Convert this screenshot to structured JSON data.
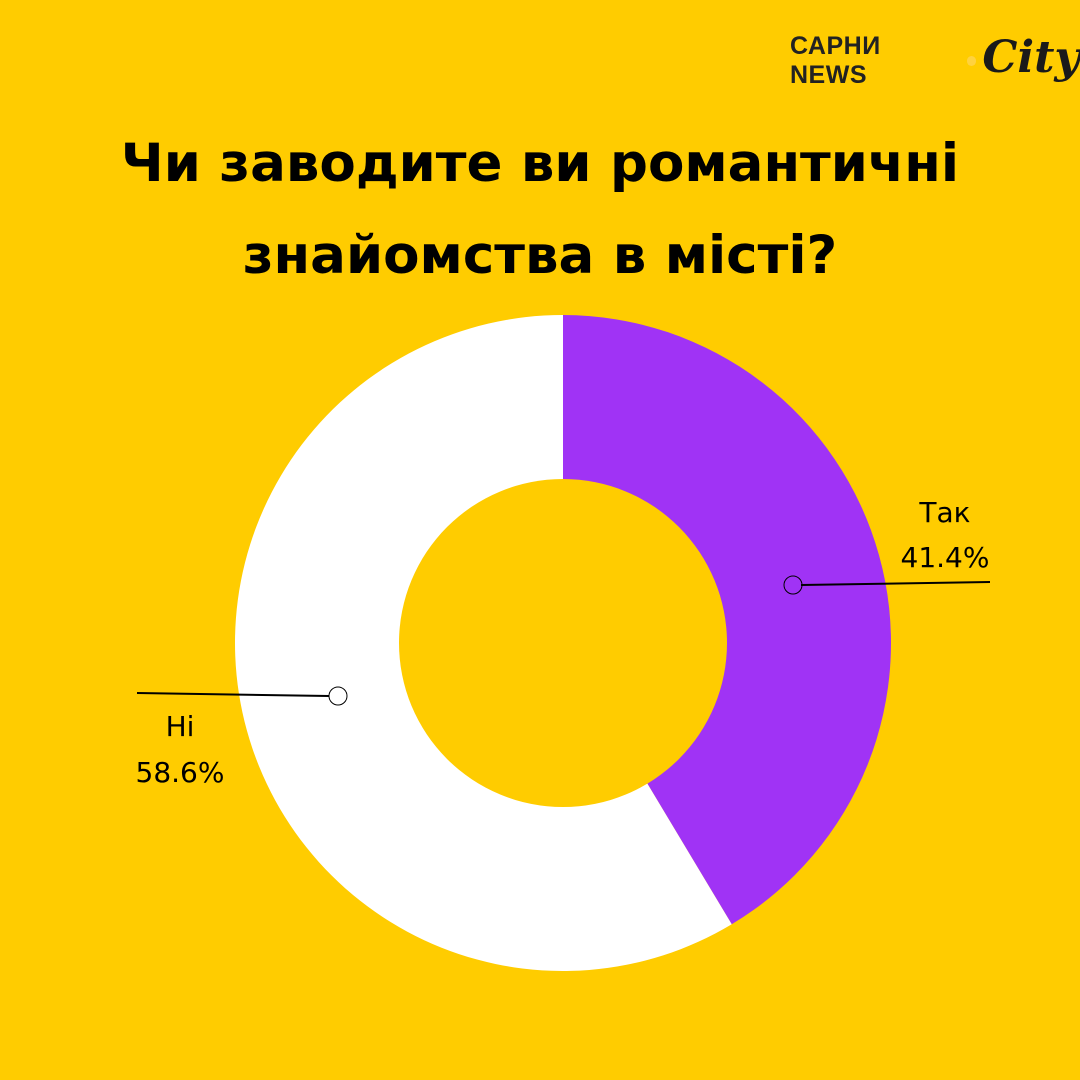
{
  "logo": {
    "brand": "САРНИ NEWS",
    "city": "City"
  },
  "chart_data": {
    "type": "pie",
    "title": "Чи заводите ви романтичні знайомства  в місті?",
    "title_lines": [
      "Чи заводите ви романтичні",
      "знайомства  в місті?"
    ],
    "donut": true,
    "slices": [
      {
        "label": "Так",
        "value": 41.4,
        "value_label": "41.4%",
        "color": "#A033F5"
      },
      {
        "label": "Ні",
        "value": 58.6,
        "value_label": "58.6%",
        "color": "#FFFFFF"
      }
    ]
  }
}
